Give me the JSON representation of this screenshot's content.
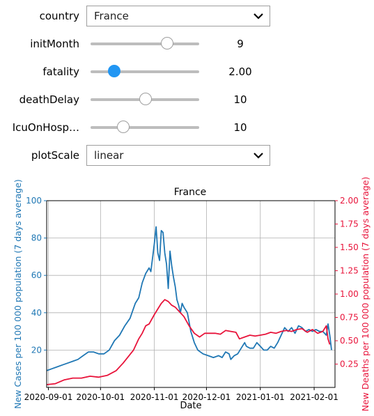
{
  "controls": {
    "country": {
      "label": "country",
      "value": "France"
    },
    "initMonth": {
      "label": "initMonth",
      "value": "9",
      "fraction": 0.708
    },
    "fatality": {
      "label": "fatality",
      "value": "2.00",
      "fraction": 0.215
    },
    "deathDelay": {
      "label": "deathDelay",
      "value": "10",
      "fraction": 0.509
    },
    "icuOnHosp": {
      "label": "IcuOnHosp…",
      "value": "10",
      "fraction": 0.301
    },
    "plotScale": {
      "label": "plotScale",
      "value": "linear"
    }
  },
  "colors": {
    "cases": "#1f77b4",
    "deaths": "#e8133a",
    "accent": "#2196f3"
  },
  "chart_data": {
    "type": "line",
    "title": "France",
    "xlabel": "Date",
    "ylabel": "New Cases per 100 000 population (7 days average)",
    "y2label": "New Deaths per 100 000 population (7 days average)",
    "x_range": [
      "2020-08-31",
      "2021-02-13"
    ],
    "ylim": [
      0,
      100
    ],
    "y2lim": [
      0,
      2.0
    ],
    "x_ticks": [
      "2020-09-01",
      "2020-10-01",
      "2020-11-01",
      "2020-12-01",
      "2021-01-01",
      "2021-02-01"
    ],
    "y_ticks": [
      "20",
      "40",
      "60",
      "80",
      "100"
    ],
    "y2_ticks": [
      "0.25",
      "0.50",
      "0.75",
      "1.00",
      "1.25",
      "1.50",
      "1.75",
      "2.00"
    ],
    "grid": true,
    "series": [
      {
        "axis": "left",
        "color": "#1f77b4",
        "points": [
          [
            "2020-08-31",
            9
          ],
          [
            "2020-09-03",
            10
          ],
          [
            "2020-09-06",
            11
          ],
          [
            "2020-09-09",
            12
          ],
          [
            "2020-09-12",
            13
          ],
          [
            "2020-09-15",
            14
          ],
          [
            "2020-09-18",
            15
          ],
          [
            "2020-09-21",
            17
          ],
          [
            "2020-09-24",
            19
          ],
          [
            "2020-09-27",
            19
          ],
          [
            "2020-09-30",
            18
          ],
          [
            "2020-10-03",
            18
          ],
          [
            "2020-10-06",
            20
          ],
          [
            "2020-10-09",
            25
          ],
          [
            "2020-10-12",
            28
          ],
          [
            "2020-10-15",
            33
          ],
          [
            "2020-10-18",
            37
          ],
          [
            "2020-10-21",
            45
          ],
          [
            "2020-10-23",
            48
          ],
          [
            "2020-10-25",
            56
          ],
          [
            "2020-10-27",
            61
          ],
          [
            "2020-10-29",
            64
          ],
          [
            "2020-10-30",
            62
          ],
          [
            "2020-11-01",
            77
          ],
          [
            "2020-11-02",
            86
          ],
          [
            "2020-11-03",
            72
          ],
          [
            "2020-11-04",
            68
          ],
          [
            "2020-11-05",
            84
          ],
          [
            "2020-11-06",
            83
          ],
          [
            "2020-11-07",
            72
          ],
          [
            "2020-11-08",
            66
          ],
          [
            "2020-11-09",
            53
          ],
          [
            "2020-11-10",
            73
          ],
          [
            "2020-11-11",
            65
          ],
          [
            "2020-11-12",
            59
          ],
          [
            "2020-11-13",
            54
          ],
          [
            "2020-11-14",
            47
          ],
          [
            "2020-11-15",
            44
          ],
          [
            "2020-11-16",
            40
          ],
          [
            "2020-11-17",
            45
          ],
          [
            "2020-11-18",
            43
          ],
          [
            "2020-11-20",
            40
          ],
          [
            "2020-11-22",
            30
          ],
          [
            "2020-11-24",
            24
          ],
          [
            "2020-11-26",
            20
          ],
          [
            "2020-11-29",
            18
          ],
          [
            "2020-12-02",
            17
          ],
          [
            "2020-12-05",
            16
          ],
          [
            "2020-12-08",
            17
          ],
          [
            "2020-12-10",
            16
          ],
          [
            "2020-12-12",
            19
          ],
          [
            "2020-12-14",
            18
          ],
          [
            "2020-12-15",
            15
          ],
          [
            "2020-12-17",
            17
          ],
          [
            "2020-12-19",
            18
          ],
          [
            "2020-12-21",
            21
          ],
          [
            "2020-12-23",
            24
          ],
          [
            "2020-12-24",
            22
          ],
          [
            "2020-12-26",
            21
          ],
          [
            "2020-12-28",
            21
          ],
          [
            "2020-12-30",
            24
          ],
          [
            "2021-01-01",
            22
          ],
          [
            "2021-01-03",
            20
          ],
          [
            "2021-01-05",
            20
          ],
          [
            "2021-01-07",
            22
          ],
          [
            "2021-01-09",
            21
          ],
          [
            "2021-01-11",
            24
          ],
          [
            "2021-01-13",
            28
          ],
          [
            "2021-01-15",
            32
          ],
          [
            "2021-01-17",
            30
          ],
          [
            "2021-01-19",
            32
          ],
          [
            "2021-01-21",
            29
          ],
          [
            "2021-01-23",
            33
          ],
          [
            "2021-01-25",
            32
          ],
          [
            "2021-01-27",
            30
          ],
          [
            "2021-01-29",
            31
          ],
          [
            "2021-01-31",
            30
          ],
          [
            "2021-02-02",
            31
          ],
          [
            "2021-02-04",
            30
          ],
          [
            "2021-02-06",
            30
          ],
          [
            "2021-02-08",
            28
          ],
          [
            "2021-02-09",
            34
          ],
          [
            "2021-02-10",
            28
          ],
          [
            "2021-02-11",
            20
          ]
        ]
      },
      {
        "axis": "right",
        "color": "#e8133a",
        "points": [
          [
            "2020-08-31",
            0.03
          ],
          [
            "2020-09-05",
            0.04
          ],
          [
            "2020-09-10",
            0.08
          ],
          [
            "2020-09-15",
            0.1
          ],
          [
            "2020-09-20",
            0.1
          ],
          [
            "2020-09-25",
            0.12
          ],
          [
            "2020-09-30",
            0.11
          ],
          [
            "2020-10-05",
            0.13
          ],
          [
            "2020-10-10",
            0.18
          ],
          [
            "2020-10-14",
            0.26
          ],
          [
            "2020-10-17",
            0.33
          ],
          [
            "2020-10-20",
            0.4
          ],
          [
            "2020-10-23",
            0.52
          ],
          [
            "2020-10-25",
            0.58
          ],
          [
            "2020-10-27",
            0.66
          ],
          [
            "2020-10-29",
            0.68
          ],
          [
            "2020-11-01",
            0.78
          ],
          [
            "2020-11-03",
            0.84
          ],
          [
            "2020-11-05",
            0.9
          ],
          [
            "2020-11-07",
            0.94
          ],
          [
            "2020-11-09",
            0.92
          ],
          [
            "2020-11-11",
            0.88
          ],
          [
            "2020-11-13",
            0.86
          ],
          [
            "2020-11-15",
            0.82
          ],
          [
            "2020-11-18",
            0.76
          ],
          [
            "2020-11-21",
            0.66
          ],
          [
            "2020-11-24",
            0.58
          ],
          [
            "2020-11-27",
            0.54
          ],
          [
            "2020-11-30",
            0.58
          ],
          [
            "2020-12-03",
            0.58
          ],
          [
            "2020-12-06",
            0.58
          ],
          [
            "2020-12-09",
            0.57
          ],
          [
            "2020-12-12",
            0.61
          ],
          [
            "2020-12-15",
            0.6
          ],
          [
            "2020-12-18",
            0.59
          ],
          [
            "2020-12-20",
            0.52
          ],
          [
            "2020-12-23",
            0.54
          ],
          [
            "2020-12-26",
            0.56
          ],
          [
            "2020-12-29",
            0.55
          ],
          [
            "2021-01-01",
            0.56
          ],
          [
            "2021-01-04",
            0.57
          ],
          [
            "2021-01-07",
            0.59
          ],
          [
            "2021-01-10",
            0.58
          ],
          [
            "2021-01-13",
            0.6
          ],
          [
            "2021-01-16",
            0.61
          ],
          [
            "2021-01-19",
            0.6
          ],
          [
            "2021-01-22",
            0.62
          ],
          [
            "2021-01-25",
            0.63
          ],
          [
            "2021-01-28",
            0.59
          ],
          [
            "2021-01-31",
            0.62
          ],
          [
            "2021-02-03",
            0.58
          ],
          [
            "2021-02-06",
            0.6
          ],
          [
            "2021-02-08",
            0.66
          ],
          [
            "2021-02-09",
            0.52
          ],
          [
            "2021-02-10",
            0.46
          ]
        ]
      }
    ]
  }
}
